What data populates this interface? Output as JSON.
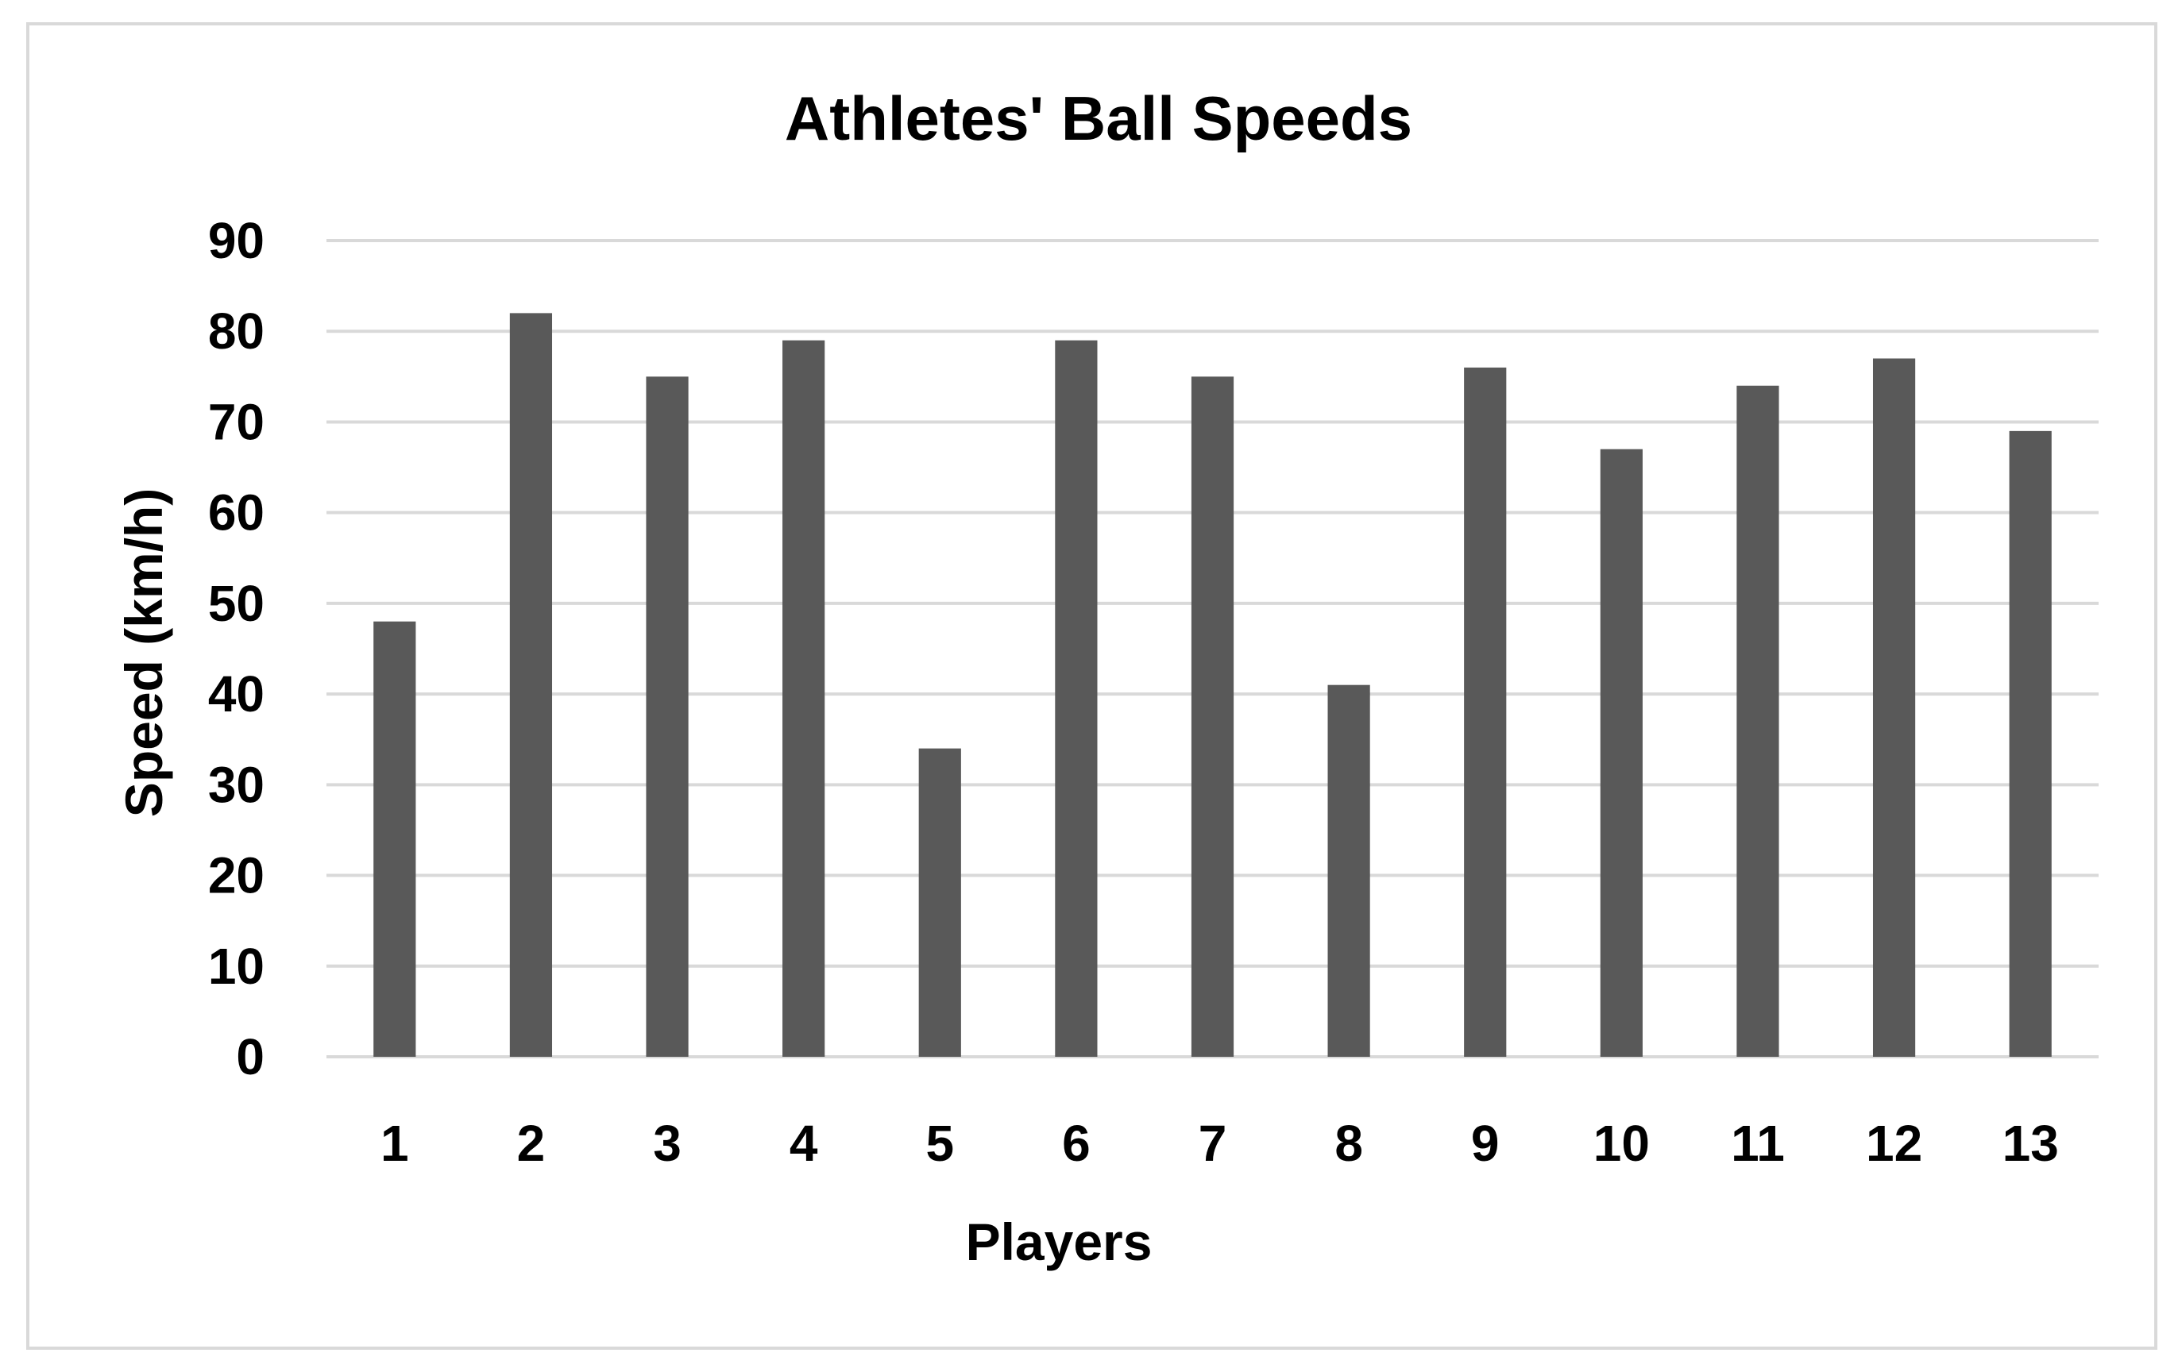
{
  "chart_data": {
    "type": "bar",
    "title": "Athletes' Ball Speeds",
    "xlabel": "Players",
    "ylabel": "Speed (km/h)",
    "categories": [
      "1",
      "2",
      "3",
      "4",
      "5",
      "6",
      "7",
      "8",
      "9",
      "10",
      "11",
      "12",
      "13"
    ],
    "values": [
      48,
      82,
      75,
      79,
      34,
      79,
      75,
      41,
      76,
      67,
      74,
      77,
      69
    ],
    "ylim": [
      0,
      90
    ],
    "yticks": [
      0,
      10,
      20,
      30,
      40,
      50,
      60,
      70,
      80,
      90
    ],
    "grid": true,
    "legend": "none",
    "bar_color": "#595959",
    "grid_color": "#d9d9d9"
  }
}
